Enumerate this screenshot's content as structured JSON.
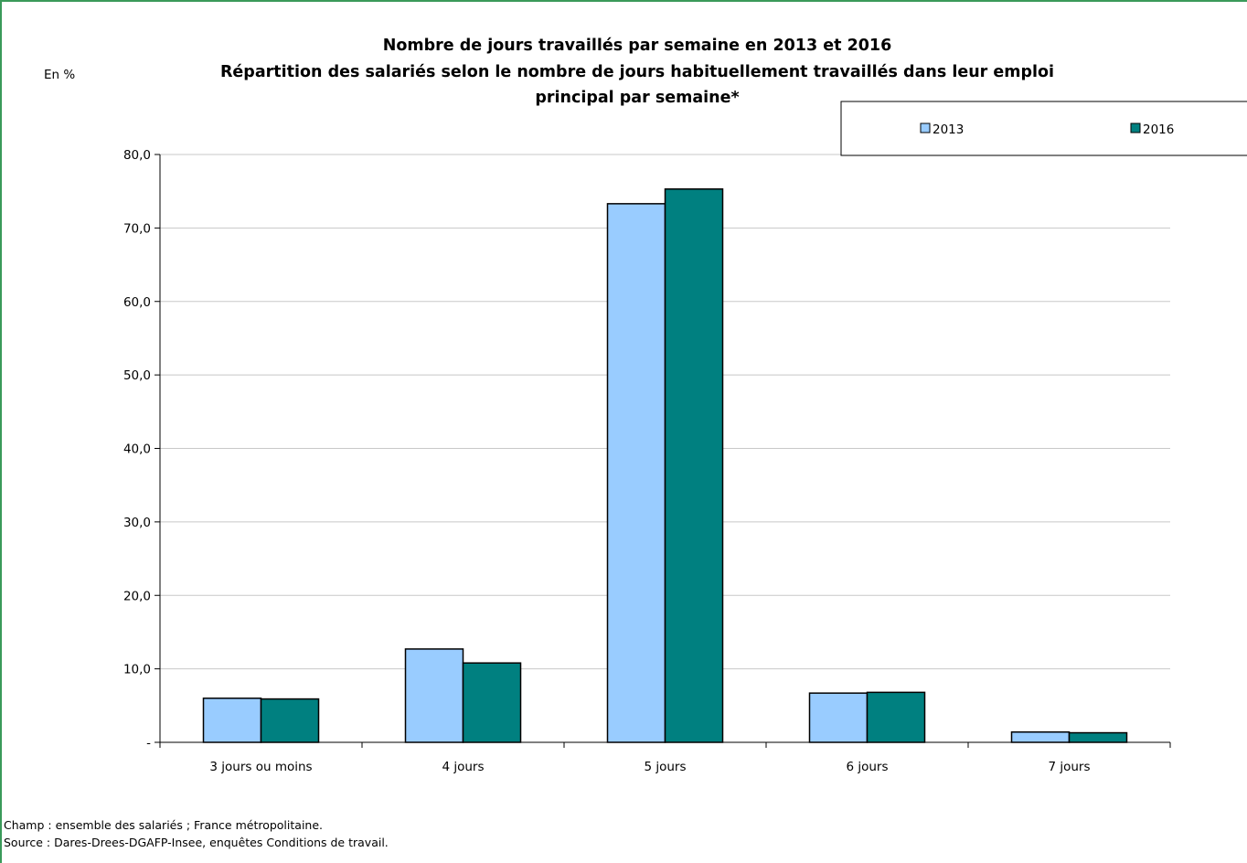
{
  "chart_data": {
    "type": "bar",
    "title": "Nombre de jours travaillés par semaine en 2013 et 2016",
    "subtitle": "Répartition des salariés selon le nombre de jours habituellement travaillés dans leur emploi principal par semaine*",
    "subtitle_lines": [
      "Répartition des salariés selon le nombre de jours habituellement travaillés dans leur emploi",
      "principal par semaine*"
    ],
    "unit_label": "En %",
    "categories": [
      "3 jours ou moins",
      "4 jours",
      "5 jours",
      "6 jours",
      "7 jours"
    ],
    "series": [
      {
        "name": "2013",
        "color": "#99ccff",
        "values": [
          6.0,
          12.7,
          73.3,
          6.7,
          1.4
        ]
      },
      {
        "name": "2016",
        "color": "#008080",
        "values": [
          5.9,
          10.8,
          75.3,
          6.8,
          1.3
        ]
      }
    ],
    "ylim": [
      0,
      80
    ],
    "yticks": [
      0,
      10,
      20,
      30,
      40,
      50,
      60,
      70,
      80
    ],
    "ytick_labels": [
      "-",
      "10,0",
      "20,0",
      "30,0",
      "40,0",
      "50,0",
      "60,0",
      "70,0",
      "80,0"
    ],
    "grid": true,
    "legend_position": "top-right"
  },
  "notes": {
    "champ": "Champ : ensemble des salariés ; France métropolitaine.",
    "source": "Source : Dares-Drees-DGAFP-Insee, enquêtes Conditions de travail."
  }
}
